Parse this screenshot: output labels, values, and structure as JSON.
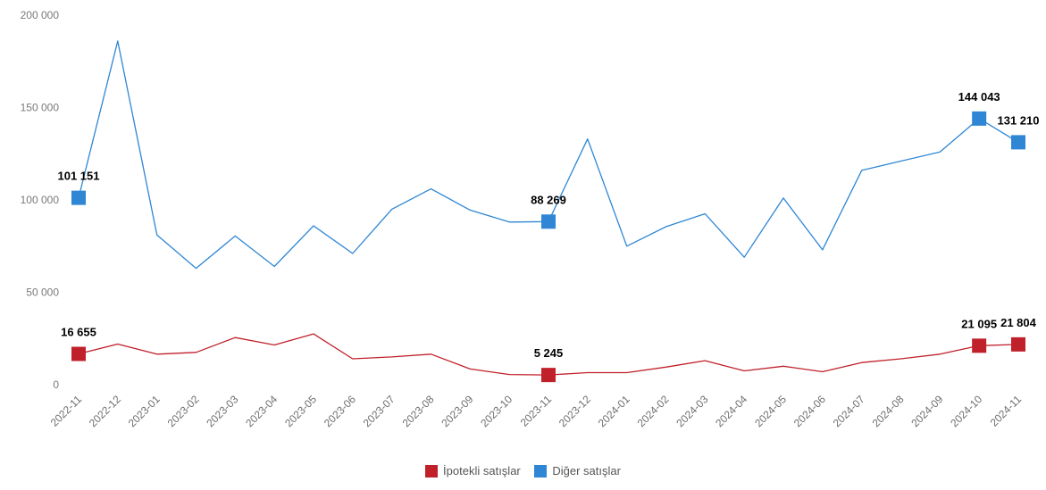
{
  "chart_data": {
    "type": "line",
    "categories": [
      "2022-11",
      "2022-12",
      "2023-01",
      "2023-02",
      "2023-03",
      "2023-04",
      "2023-05",
      "2023-06",
      "2023-07",
      "2023-08",
      "2023-09",
      "2023-10",
      "2023-11",
      "2023-12",
      "2024-01",
      "2024-02",
      "2024-03",
      "2024-04",
      "2024-05",
      "2024-06",
      "2024-07",
      "2024-08",
      "2024-09",
      "2024-10",
      "2024-11"
    ],
    "ylim": [
      0,
      200000
    ],
    "yticks": [
      {
        "value": 0,
        "label": "0"
      },
      {
        "value": 50000,
        "label": "50 000"
      },
      {
        "value": 100000,
        "label": "100 000"
      },
      {
        "value": 150000,
        "label": "150 000"
      },
      {
        "value": 200000,
        "label": "200 000"
      }
    ],
    "grid": false,
    "legend_position": "bottom",
    "series": [
      {
        "name": "İpotekli satışlar",
        "color": "#c0202a",
        "values": [
          16655,
          22000,
          16500,
          17500,
          25500,
          21500,
          27500,
          14000,
          15000,
          16500,
          8500,
          5500,
          5245,
          6500,
          6500,
          9500,
          13000,
          7500,
          10000,
          7000,
          12000,
          14000,
          16500,
          21095,
          21804
        ],
        "labels": {
          "0": "16 655",
          "12": "5 245",
          "23": "21 095",
          "24": "21 804"
        }
      },
      {
        "name": "Diğer satışlar",
        "color": "#2e86d4",
        "values": [
          101151,
          186000,
          81000,
          63000,
          80500,
          64000,
          86000,
          71000,
          95000,
          106000,
          94500,
          88000,
          88269,
          133000,
          75000,
          85500,
          92500,
          69000,
          101000,
          73000,
          116000,
          121000,
          126000,
          144043,
          131210
        ],
        "labels": {
          "0": "101 151",
          "12": "88 269",
          "23": "144 043",
          "24": "131 210"
        }
      }
    ]
  }
}
